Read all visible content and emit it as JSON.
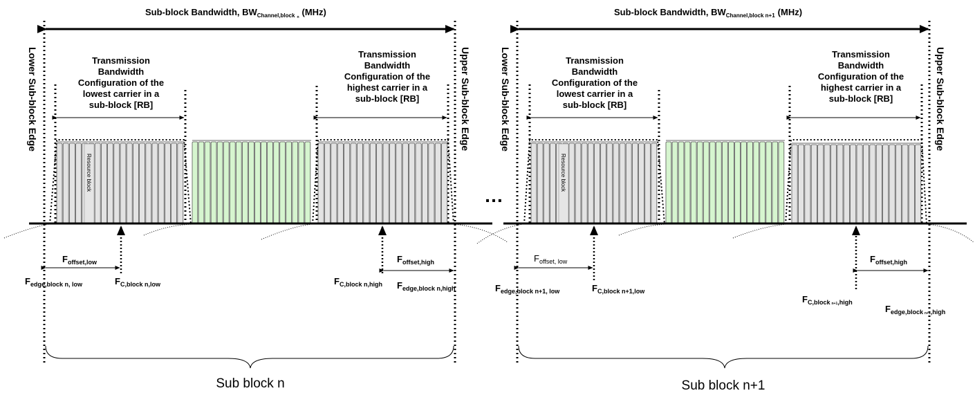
{
  "colors": {
    "rb_fill": "#e3e3e3",
    "rb_fill_alt": "#e5e5e5",
    "rb_green": "#d6f5cf",
    "line": "#000000"
  },
  "ellipsis": "…",
  "blocks": [
    {
      "bandwidth_label": "Sub-block Bandwidth, BW",
      "bandwidth_sub": "Channel,block",
      "bandwidth_subsub": "n",
      "bandwidth_unit": "(MHz)",
      "lower_edge": "Lower Sub-block Edge",
      "upper_edge": "Upper Sub-block Edge",
      "tbc_low": [
        "Transmission",
        "Bandwidth",
        "Configuration of the",
        "lowest carrier in a",
        "sub-block [RB]"
      ],
      "tbc_high": [
        "Transmission",
        "Bandwidth",
        "Configuration of the",
        "highest carrier in a",
        "sub-block [RB]"
      ],
      "resource_block": "Resource block",
      "foffset_low_main": "F",
      "foffset_low_sub": "offset,low",
      "foffset_high_main": "F",
      "foffset_high_sub": "offset,high",
      "fedge_low_main": "F",
      "fedge_low_sub": "edge,block n, low",
      "fc_low_main": "F",
      "fc_low_sub": "C,block n,low",
      "fc_high_main": "F",
      "fc_high_sub": "C,block n,high",
      "fedge_high_main": "F",
      "fedge_high_sub": "edge,block n,high",
      "sub_block_label": "Sub block n"
    },
    {
      "bandwidth_label": "Sub-block Bandwidth, BW",
      "bandwidth_sub": "Channel,block n+1",
      "bandwidth_subsub": "",
      "bandwidth_unit": "(MHz)",
      "lower_edge": "Lower Sub-block Edge",
      "upper_edge": "Upper Sub-block Edge",
      "tbc_low": [
        "Transmission",
        "Bandwidth",
        "Configuration of the",
        "lowest carrier in a",
        "sub-block [RB]"
      ],
      "tbc_high": [
        "Transmission",
        "Bandwidth",
        "Configuration of the",
        "highest carrier in a",
        "sub-block [RB]"
      ],
      "resource_block": "Resource block",
      "foffset_low_main": "F",
      "foffset_low_sub": "offset, low",
      "foffset_high_main": "F",
      "foffset_high_sub": "offset,high",
      "fedge_low_main": "F",
      "fedge_low_sub": "edge,block n+1, low",
      "fc_low_main": "F",
      "fc_low_sub": "C,block n+1,low",
      "fc_high_main": "F",
      "fc_high_sub": "C,block",
      "fc_high_sub2": "n+1",
      "fc_high_sub3": ",high",
      "fedge_high_main": "F",
      "fedge_high_sub": "edge,block",
      "fedge_high_sub2": "n+1",
      "fedge_high_sub3": ",high",
      "sub_block_label": "Sub block n+1"
    }
  ]
}
